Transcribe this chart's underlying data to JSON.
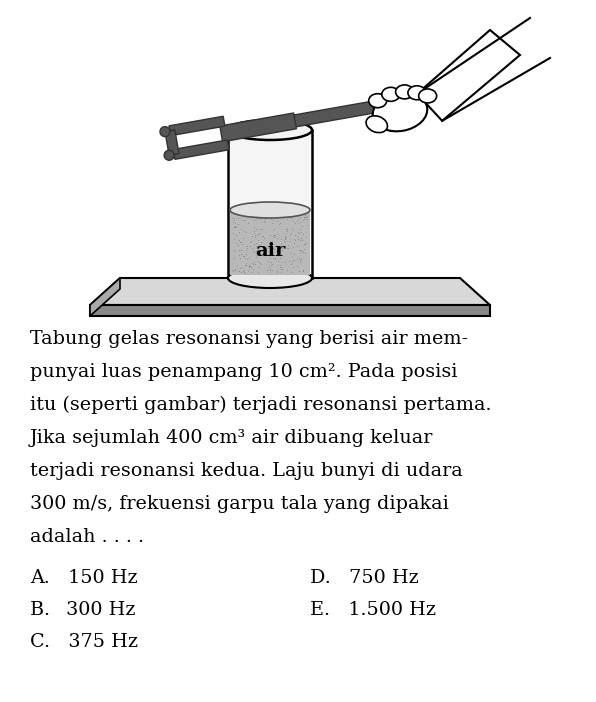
{
  "background_color": "#ffffff",
  "text_lines": [
    "Tabung gelas resonansi yang berisi air mem-",
    "punyai luas penampang 10 cm². Pada posisi",
    "itu (seperti gambar) terjadi resonansi pertama.",
    "Jika sejumlah 400 cm³ air dibuang keluar",
    "terjadi resonansi kedua. Laju bunyi di udara",
    "300 m/s, frekuensi garpu tala yang dipakai",
    "adalah . . . ."
  ],
  "options_left": [
    "A.   150 Hz",
    "B.   300 Hz",
    "C.   375 Hz"
  ],
  "options_right": [
    "D.   750 Hz",
    "E.   1.500 Hz"
  ],
  "fig_width": 5.96,
  "fig_height": 7.02,
  "dpi": 100,
  "fork_color": "#555555",
  "fork_shadow": "#333333",
  "water_color": "#b0b0b0",
  "tube_color": "#f8f8f8",
  "platform_top": "#d8d8d8",
  "platform_side": "#888888"
}
